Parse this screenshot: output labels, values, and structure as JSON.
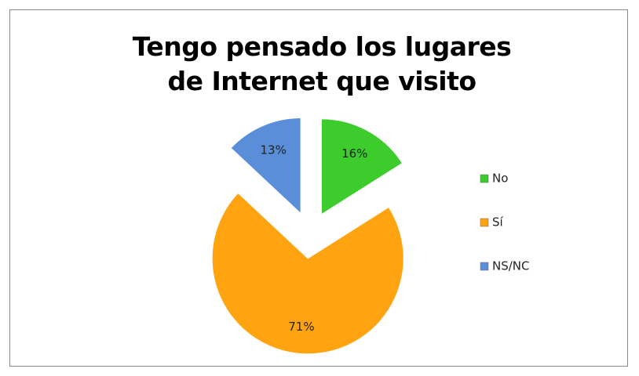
{
  "chart_data": {
    "type": "pie",
    "title": "Tengo pensado los lugares de Internet que visito",
    "categories": [
      "No",
      "Sí",
      "NS/NC"
    ],
    "values": [
      16,
      71,
      13
    ],
    "value_labels": [
      "16%",
      "71%",
      "13%"
    ],
    "colors": [
      "#3ccc2c",
      "#ffa310",
      "#5b8ed8"
    ],
    "legend": "right"
  }
}
